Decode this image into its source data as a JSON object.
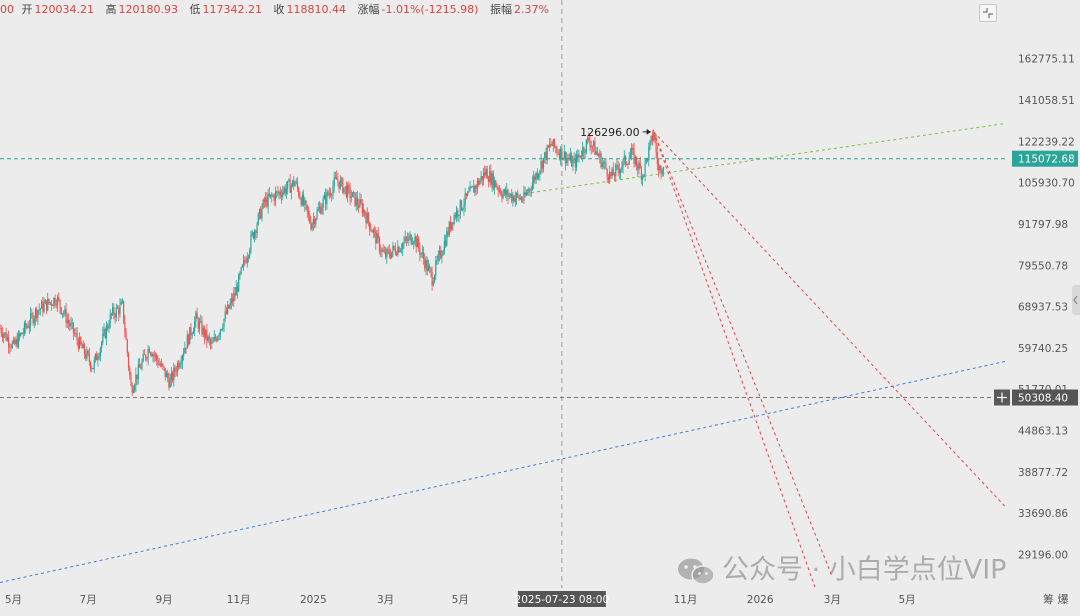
{
  "header": {
    "prefix": "00",
    "open_label": "开",
    "open": "120034.21",
    "high_label": "高",
    "high": "120180.93",
    "low_label": "低",
    "low": "117342.21",
    "close_label": "收",
    "close": "118810.44",
    "change_label": "涨幅",
    "change": "-1.01%(-1215.98)",
    "amplitude_label": "振幅",
    "amplitude": "2.37%"
  },
  "watermark": {
    "text": "公众号 · 小白学点位VIP",
    "logo_icon": "wechat-icon"
  },
  "chart_data": {
    "type": "candlestick",
    "title": "",
    "xlabel": "",
    "ylabel": "",
    "y_scale": "log",
    "ylim": [
      26000,
      190000
    ],
    "x_range": [
      "2024-04-20",
      "2026-07-20"
    ],
    "x_ticks": [
      {
        "date": "2024-05-01",
        "label": "5月"
      },
      {
        "date": "2024-07-01",
        "label": "7月"
      },
      {
        "date": "2024-09-01",
        "label": "9月"
      },
      {
        "date": "2024-11-01",
        "label": "11月"
      },
      {
        "date": "2025-01-01",
        "label": "2025"
      },
      {
        "date": "2025-03-01",
        "label": "3月"
      },
      {
        "date": "2025-05-01",
        "label": "5月"
      },
      {
        "date": "2025-11-01",
        "label": "11月"
      },
      {
        "date": "2026-01-01",
        "label": "2026"
      },
      {
        "date": "2026-03-01",
        "label": "3月"
      },
      {
        "date": "2026-05-01",
        "label": "5月"
      }
    ],
    "y_ticks": [
      "162775.11",
      "141058.51",
      "122239.22",
      "105930.70",
      "91797.98",
      "79550.78",
      "68937.53",
      "59740.25",
      "51770.01",
      "44863.13",
      "38877.72",
      "33690.86",
      "29196.00"
    ],
    "axis_corner_label": "筹 爆",
    "up_color": "#26a69a",
    "down_color": "#ef5350",
    "price_path": [
      [
        "2024-04-20",
        64000
      ],
      [
        "2024-05-01",
        60000
      ],
      [
        "2024-05-20",
        68000
      ],
      [
        "2024-06-05",
        71000
      ],
      [
        "2024-06-25",
        60000
      ],
      [
        "2024-07-05",
        56000
      ],
      [
        "2024-07-20",
        67000
      ],
      [
        "2024-07-29",
        69000
      ],
      [
        "2024-08-05",
        52000
      ],
      [
        "2024-08-20",
        60000
      ],
      [
        "2024-09-06",
        53000
      ],
      [
        "2024-09-27",
        66000
      ],
      [
        "2024-10-10",
        60000
      ],
      [
        "2024-10-29",
        72000
      ],
      [
        "2024-11-12",
        88000
      ],
      [
        "2024-11-22",
        99000
      ],
      [
        "2024-12-17",
        106000
      ],
      [
        "2024-12-30",
        92000
      ],
      [
        "2025-01-20",
        107000
      ],
      [
        "2025-02-10",
        97000
      ],
      [
        "2025-02-28",
        82000
      ],
      [
        "2025-03-24",
        88000
      ],
      [
        "2025-04-08",
        76000
      ],
      [
        "2025-04-25",
        94000
      ],
      [
        "2025-05-22",
        110000
      ],
      [
        "2025-06-05",
        102000
      ],
      [
        "2025-06-22",
        100000
      ],
      [
        "2025-07-14",
        121000
      ],
      [
        "2025-08-02",
        113000
      ],
      [
        "2025-08-14",
        123000
      ],
      [
        "2025-09-01",
        108000
      ],
      [
        "2025-09-18",
        117000
      ],
      [
        "2025-09-27",
        109000
      ],
      [
        "2025-10-06",
        126000
      ],
      [
        "2025-10-10",
        110000
      ],
      [
        "2025-10-14",
        114000
      ]
    ],
    "annotations": [
      {
        "type": "max_price_label",
        "label": "126296.00",
        "x": "2025-10-06",
        "y": 126296
      }
    ],
    "reference_lines": [
      {
        "style": "dashed",
        "color": "#2aa59a",
        "y": 115072.68,
        "label": "115072.68",
        "label_bg": "#2aa59a"
      },
      {
        "style": "dashed",
        "color": "#777777",
        "y": 50308.4,
        "label": "50308.40",
        "label_bg": "#555555"
      }
    ],
    "crosshair": {
      "x": "2025-07-23",
      "label": "2025-07-23 08:00"
    },
    "trendlines": [
      {
        "color": "#7cc23c",
        "points": [
          [
            "2025-06-23",
            102000
          ],
          [
            "2026-07-20",
            130000
          ]
        ]
      },
      {
        "color": "#3d7fe0",
        "points": [
          [
            "2024-04-20",
            26500
          ],
          [
            "2026-07-20",
            57000
          ]
        ]
      },
      {
        "color": "#e04848",
        "points": [
          [
            "2025-10-06",
            126296
          ],
          [
            "2026-07-20",
            34500
          ]
        ]
      },
      {
        "color": "#e04848",
        "points": [
          [
            "2025-10-06",
            126296
          ],
          [
            "2026-03-01",
            27000
          ]
        ]
      },
      {
        "color": "#e04848",
        "points": [
          [
            "2025-10-06",
            126296
          ],
          [
            "2026-02-15",
            26000
          ]
        ]
      }
    ]
  }
}
